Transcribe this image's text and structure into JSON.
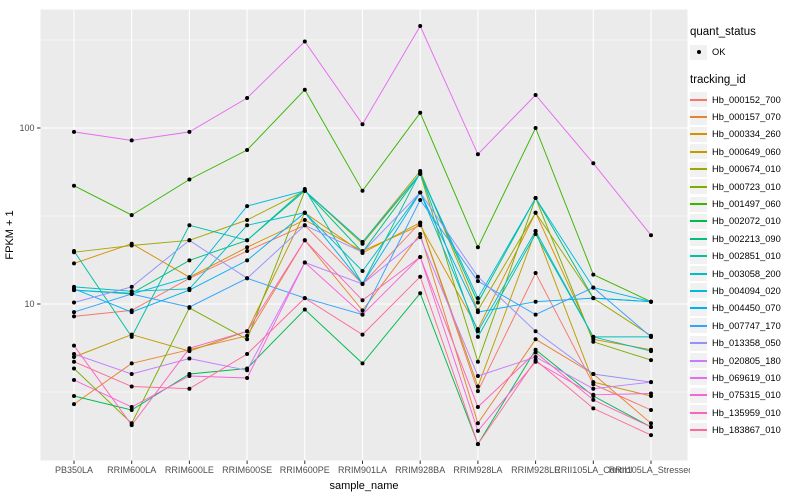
{
  "legend": {
    "quant_status_title": "quant_status",
    "quant_status_items": [
      {
        "label": "OK",
        "marker": "black-point"
      }
    ],
    "tracking_id_title": "tracking_id"
  },
  "chart_data": {
    "type": "line",
    "title": "",
    "xlabel": "sample_name",
    "ylabel": "FPKM + 1",
    "y_scale": "log10",
    "y_ticks": [
      100,
      10
    ],
    "y_tick_labels": [
      "100",
      "10"
    ],
    "y_minor_ticks": [
      3.162,
      31.62,
      316.2
    ],
    "ylim": [
      1.3,
      470
    ],
    "legend_position": "right",
    "grid": true,
    "panel_bg": "#EBEBEB",
    "gridline_color": "#FFFFFF",
    "axis_text_color": "#4D4D4D",
    "tick_color": "#333333",
    "marker_color": "#000000",
    "categories": [
      "PB350LA",
      "RRIM600LA",
      "RRIM600LE",
      "RRIM600SE",
      "RRIM600PE",
      "RRIM901LA",
      "RRIM928BA",
      "RRIM928LA",
      "RRIM928LE",
      "RRII105LA_Control",
      "RRII105LA_Stressed"
    ],
    "series": [
      {
        "name": "Hb_000152_700",
        "color": "#F8766D",
        "values": [
          8.5,
          9.2,
          14,
          20,
          28,
          13,
          29,
          3.2,
          15,
          3.5,
          2.5
        ]
      },
      {
        "name": "Hb_000157_070",
        "color": "#EA8331",
        "values": [
          2.7,
          4.6,
          5.5,
          6.6,
          23,
          9.2,
          25,
          2.1,
          6.3,
          4.0,
          2.1
        ]
      },
      {
        "name": "Hb_000334_260",
        "color": "#D89000",
        "values": [
          17,
          22,
          14.2,
          21,
          30,
          20,
          28,
          7.2,
          33,
          6.3,
          5.5
        ]
      },
      {
        "name": "Hb_000649_060",
        "color": "#C09B00",
        "values": [
          5.0,
          6.7,
          5.4,
          7.0,
          33,
          19.5,
          29,
          3.4,
          26,
          3.6,
          3.0
        ]
      },
      {
        "name": "Hb_000674_010",
        "color": "#A3A500",
        "values": [
          19.7,
          21.5,
          23,
          30,
          44,
          22.5,
          57,
          9.2,
          33,
          10.8,
          6.6
        ]
      },
      {
        "name": "Hb_000723_010",
        "color": "#7CAE00",
        "values": [
          4.3,
          2.1,
          9.5,
          6.3,
          44,
          22,
          55,
          4.7,
          40,
          6.1,
          4.8
        ]
      },
      {
        "name": "Hb_001497_060",
        "color": "#39B600",
        "values": [
          47,
          32,
          51,
          75,
          165,
          44,
          122,
          21,
          100,
          14.7,
          10.3
        ]
      },
      {
        "name": "Hb_002072_010",
        "color": "#00BB4E",
        "values": [
          3.0,
          2.5,
          4.0,
          4.3,
          9.3,
          4.6,
          11.5,
          1.6,
          5.5,
          3.0,
          2.0
        ]
      },
      {
        "name": "Hb_002213_090",
        "color": "#00BF7D",
        "values": [
          12,
          11.5,
          17.7,
          23,
          44,
          19.7,
          55,
          10.2,
          40,
          10.8,
          10.3
        ]
      },
      {
        "name": "Hb_002851_010",
        "color": "#00C1A3",
        "values": [
          20,
          6.5,
          28,
          23,
          45,
          13,
          56,
          6.5,
          25,
          6.5,
          5.4
        ]
      },
      {
        "name": "Hb_003058_200",
        "color": "#00BFC4",
        "values": [
          12.5,
          11.8,
          12.2,
          28,
          33,
          15.4,
          43,
          7.0,
          26,
          6.5,
          6.5
        ]
      },
      {
        "name": "Hb_004094_020",
        "color": "#00BAE0",
        "values": [
          12,
          11.4,
          14.2,
          36,
          44,
          22.5,
          55,
          10.8,
          40,
          12.4,
          10.3
        ]
      },
      {
        "name": "Hb_004450_070",
        "color": "#00B0F6",
        "values": [
          12.2,
          9.0,
          12,
          17.7,
          33,
          13,
          43,
          9.0,
          10.3,
          10.8,
          10.3
        ]
      },
      {
        "name": "Hb_007747_170",
        "color": "#35A2FF",
        "values": [
          9.0,
          11.4,
          9.6,
          14,
          10.8,
          8.7,
          39,
          13.5,
          8.7,
          12.4,
          6.5
        ]
      },
      {
        "name": "Hb_013358_050",
        "color": "#9590FF",
        "values": [
          10.2,
          12.5,
          23,
          14,
          28,
          19.7,
          43,
          14.3,
          7.0,
          4.0,
          3.6
        ]
      },
      {
        "name": "Hb_020805_180",
        "color": "#C77CFF",
        "values": [
          5.2,
          4.0,
          4.9,
          4.2,
          17.2,
          13,
          24,
          3.9,
          5.0,
          3.3,
          3.6
        ]
      },
      {
        "name": "Hb_069619_010",
        "color": "#E76BF3",
        "values": [
          95,
          85,
          95,
          148,
          310,
          105,
          380,
          71,
          154,
          63,
          24.6
        ]
      },
      {
        "name": "Hb_075315_010",
        "color": "#FA62DB",
        "values": [
          3.7,
          2.6,
          3.9,
          3.8,
          17.2,
          8.7,
          18.5,
          1.9,
          4.7,
          3.05,
          3.1
        ]
      },
      {
        "name": "Hb_135959_010",
        "color": "#FF62BC",
        "values": [
          5.8,
          2.05,
          5.6,
          7.0,
          23,
          10.5,
          18.5,
          2.6,
          5.3,
          2.85,
          2.0
        ]
      },
      {
        "name": "Hb_183867_010",
        "color": "#FF6A98",
        "values": [
          4.7,
          3.4,
          3.3,
          5.2,
          10.8,
          6.7,
          14.3,
          1.6,
          4.8,
          2.55,
          1.8
        ]
      }
    ]
  }
}
